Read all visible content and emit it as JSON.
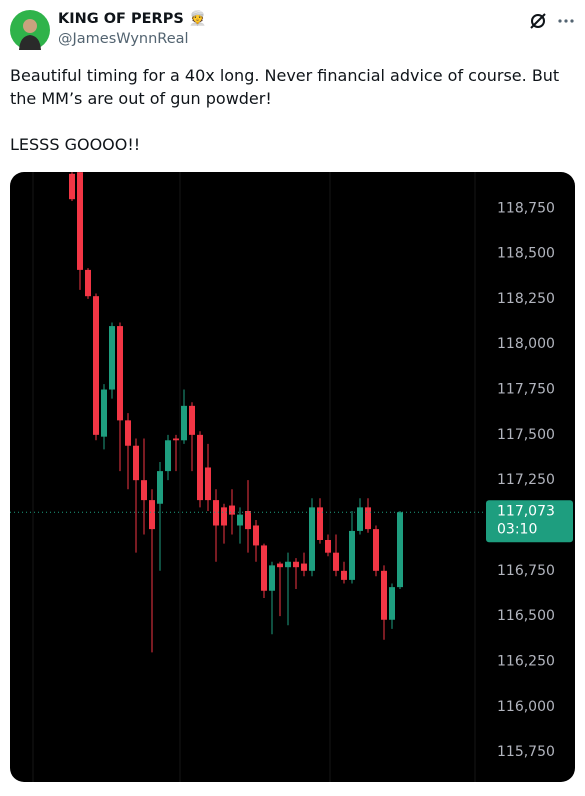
{
  "tweet": {
    "name": "KING OF PERPS 👳",
    "handle": "@JamesWynnReal",
    "paragraphs": [
      "Beautiful timing for a 40x long. Never financial advice of course. But the MM’s are out of gun powder!",
      "LESSS GOOOO!!"
    ]
  },
  "chart_data": {
    "type": "candlestick",
    "up_color": "#1e9e7f",
    "down_color": "#f23645",
    "open": [
      118940,
      118949,
      118410,
      118265,
      117490,
      117750,
      118100,
      117580,
      117440,
      117250,
      117140,
      117120,
      117300,
      117480,
      117470,
      117660,
      117500,
      117320,
      117140,
      117100,
      117110,
      117000,
      117080,
      117000,
      116890,
      116640,
      116790,
      116770,
      116800,
      116790,
      116750,
      117100,
      116920,
      116850,
      116750,
      116700,
      116970,
      117100,
      116980,
      116750,
      116480,
      116660
    ],
    "high": [
      118949,
      118949,
      118420,
      118280,
      117780,
      118120,
      118120,
      117620,
      117480,
      117480,
      117200,
      117350,
      117500,
      117500,
      117750,
      117680,
      117520,
      117450,
      117200,
      117120,
      117200,
      117100,
      117250,
      117030,
      116900,
      116800,
      116800,
      116850,
      116820,
      116850,
      117150,
      117150,
      116950,
      116950,
      116800,
      117080,
      117150,
      117150,
      117000,
      116780,
      116680,
      117080
    ],
    "low": [
      118790,
      118300,
      118250,
      117470,
      117420,
      117700,
      117300,
      117200,
      116850,
      116950,
      116300,
      116750,
      117250,
      117300,
      117450,
      117300,
      117100,
      117080,
      116800,
      116900,
      116950,
      116900,
      116850,
      116800,
      116600,
      116400,
      116500,
      116450,
      116650,
      116720,
      116720,
      116900,
      116830,
      116720,
      116680,
      116680,
      116950,
      116960,
      116720,
      116370,
      116430,
      116650
    ],
    "close": [
      118800,
      118410,
      118265,
      117500,
      117750,
      118100,
      117580,
      117440,
      117250,
      117140,
      116980,
      117300,
      117470,
      117470,
      117660,
      117500,
      117140,
      117140,
      117000,
      117000,
      117060,
      117060,
      116980,
      116890,
      116640,
      116780,
      116770,
      116800,
      116770,
      116750,
      117100,
      116920,
      116850,
      116750,
      116700,
      116970,
      117100,
      116980,
      116750,
      116480,
      116660,
      117073
    ],
    "ylim": [
      115585,
      118950
    ],
    "yticks": [
      {
        "value": 118750,
        "label": "118,750"
      },
      {
        "value": 118500,
        "label": "118,500"
      },
      {
        "value": 118250,
        "label": "118,250"
      },
      {
        "value": 118000,
        "label": "118,000"
      },
      {
        "value": 117750,
        "label": "117,750"
      },
      {
        "value": 117500,
        "label": "117,500"
      },
      {
        "value": 117250,
        "label": "117,250"
      },
      {
        "value": 116750,
        "label": "116,750"
      },
      {
        "value": 116500,
        "label": "116,500"
      },
      {
        "value": 116250,
        "label": "116,250"
      },
      {
        "value": 116000,
        "label": "116,000"
      },
      {
        "value": 115750,
        "label": "115,750"
      }
    ],
    "last_price": {
      "value": 117073,
      "label": "117,073"
    },
    "countdown": "03:10"
  }
}
